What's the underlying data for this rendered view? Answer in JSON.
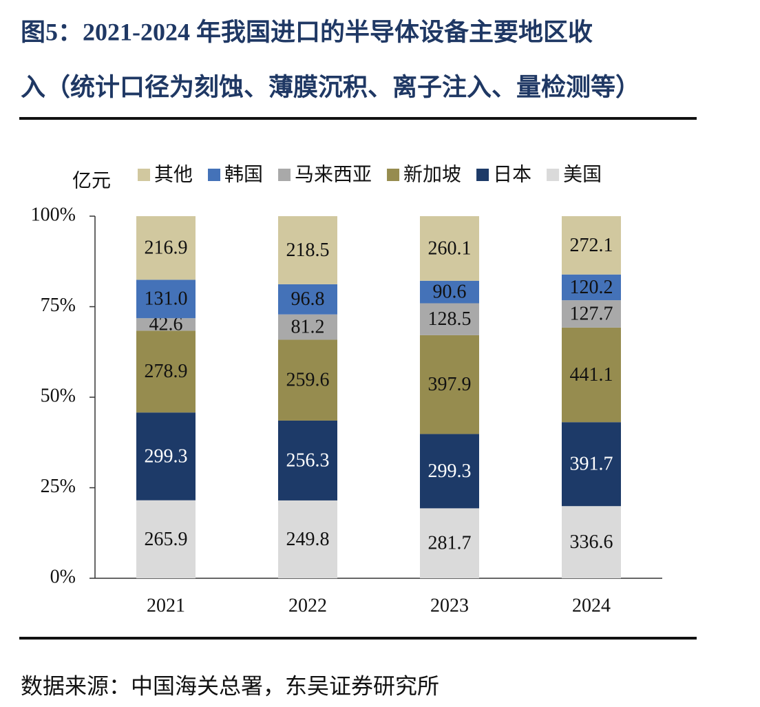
{
  "chart_data": {
    "type": "bar",
    "stack": "percent",
    "title": [
      "图5：2021-2024 年我国进口的半导体设备主要地区收",
      "入（统计口径为刻蚀、薄膜沉积、离子注入、量检测等）"
    ],
    "y_label": "亿元",
    "source": "数据来源：中国海关总署，东吴证券研究所",
    "categories": [
      "2021",
      "2022",
      "2023",
      "2024"
    ],
    "series": [
      {
        "name": "其他",
        "color": "#d1c89f",
        "values": [
          216.9,
          218.5,
          260.1,
          272.1
        ]
      },
      {
        "name": "韩国",
        "color": "#4472b8",
        "values": [
          131.0,
          96.8,
          90.6,
          120.2
        ],
        "value_labels": [
          "131.0",
          "96.8",
          "90.6",
          "120.2"
        ]
      },
      {
        "name": "马来西亚",
        "color": "#a9a9a9",
        "values": [
          42.6,
          81.2,
          128.5,
          127.7
        ]
      },
      {
        "name": "新加坡",
        "color": "#968c4f",
        "values": [
          278.9,
          259.6,
          397.9,
          441.1
        ]
      },
      {
        "name": "日本",
        "color": "#1d3a68",
        "values": [
          299.3,
          256.3,
          299.3,
          391.7
        ]
      },
      {
        "name": "美国",
        "color": "#dadada",
        "values": [
          265.9,
          249.8,
          281.7,
          336.6
        ]
      }
    ],
    "ylim": [
      0,
      100
    ],
    "yticks": [
      {
        "value": 0,
        "label": "0%"
      },
      {
        "value": 25,
        "label": "25%"
      },
      {
        "value": 50,
        "label": "50%"
      },
      {
        "value": 75,
        "label": "75%"
      },
      {
        "value": 100,
        "label": "100%"
      }
    ]
  }
}
